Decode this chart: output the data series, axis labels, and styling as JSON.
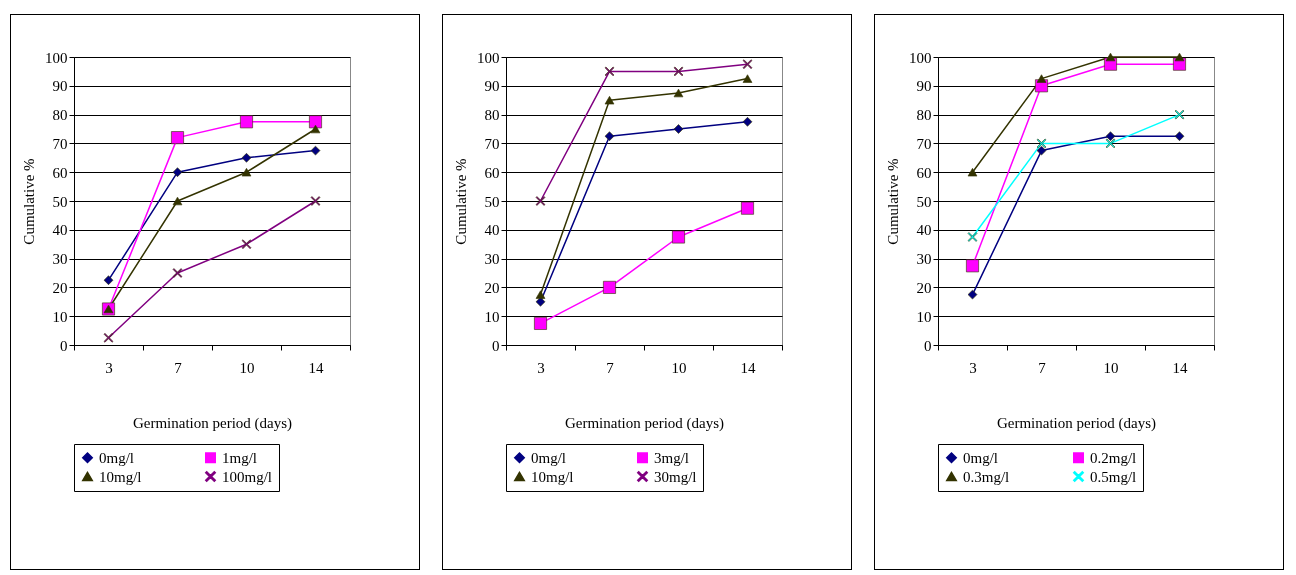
{
  "chart_data": [
    {
      "type": "line",
      "categories": [
        "3",
        "7",
        "10",
        "14"
      ],
      "xlabel": "Germination period (days)",
      "ylabel": "Cumulative %",
      "ylim": [
        0,
        100
      ],
      "yticks": [
        0,
        10,
        20,
        30,
        40,
        50,
        60,
        70,
        80,
        90,
        100
      ],
      "grid": "y",
      "legend": "bottom",
      "series": [
        {
          "name": "0mg/l",
          "color": "#000080",
          "marker": "diamond",
          "values": [
            22.5,
            60,
            65,
            67.5
          ]
        },
        {
          "name": "1mg/l",
          "color": "#ff00ff",
          "marker": "square",
          "values": [
            12.5,
            72,
            77.5,
            77.5
          ]
        },
        {
          "name": "10mg/l",
          "color": "#333300",
          "marker": "triangle",
          "values": [
            12.5,
            50,
            60,
            75
          ]
        },
        {
          "name": "100mg/l",
          "color": "#800080",
          "marker": "cross",
          "values": [
            2.5,
            25,
            35,
            50
          ]
        }
      ]
    },
    {
      "type": "line",
      "categories": [
        "3",
        "7",
        "10",
        "14"
      ],
      "xlabel": "Germination period (days)",
      "ylabel": "Cumulative %",
      "ylim": [
        0,
        100
      ],
      "yticks": [
        0,
        10,
        20,
        30,
        40,
        50,
        60,
        70,
        80,
        90,
        100
      ],
      "grid": "y",
      "legend": "bottom",
      "series": [
        {
          "name": "0mg/l",
          "color": "#000080",
          "marker": "diamond",
          "values": [
            15,
            72.5,
            75,
            77.5
          ]
        },
        {
          "name": "3mg/l",
          "color": "#ff00ff",
          "marker": "square",
          "values": [
            7.5,
            20,
            37.5,
            47.5
          ]
        },
        {
          "name": "10mg/l",
          "color": "#333300",
          "marker": "triangle",
          "values": [
            17.5,
            85,
            87.5,
            92.5
          ]
        },
        {
          "name": "30mg/l",
          "color": "#800080",
          "marker": "cross",
          "values": [
            50,
            95,
            95,
            97.5
          ]
        }
      ]
    },
    {
      "type": "line",
      "categories": [
        "3",
        "7",
        "10",
        "14"
      ],
      "xlabel": "Germination period (days)",
      "ylabel": "Cumulative %",
      "ylim": [
        0,
        100
      ],
      "yticks": [
        0,
        10,
        20,
        30,
        40,
        50,
        60,
        70,
        80,
        90,
        100
      ],
      "grid": "y",
      "legend": "bottom",
      "series": [
        {
          "name": "0mg/l",
          "color": "#000080",
          "marker": "diamond",
          "values": [
            17.5,
            67.5,
            72.5,
            72.5
          ]
        },
        {
          "name": "0.2mg/l",
          "color": "#ff00ff",
          "marker": "square",
          "values": [
            27.5,
            90,
            97.5,
            97.5
          ]
        },
        {
          "name": "0.3mg/l",
          "color": "#333300",
          "marker": "triangle",
          "values": [
            60,
            92.5,
            100,
            100
          ]
        },
        {
          "name": "0.5mg/l",
          "color": "#00ffff",
          "marker": "cross",
          "values": [
            37.5,
            70,
            70,
            80
          ]
        }
      ]
    }
  ]
}
